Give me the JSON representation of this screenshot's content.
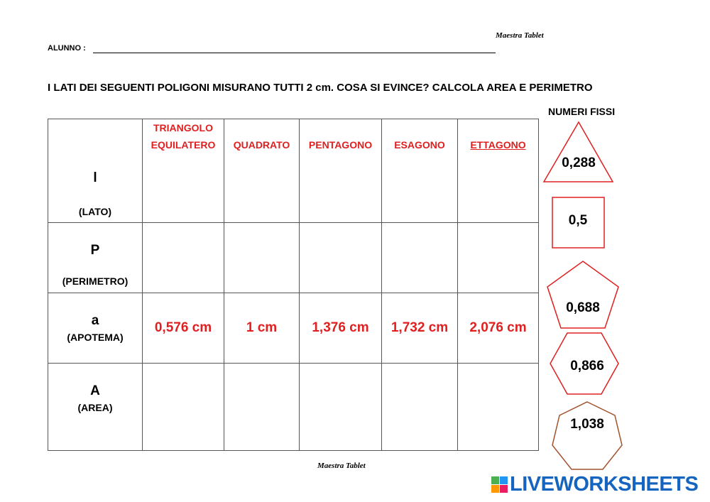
{
  "header": {
    "credit": "Maestra Tablet",
    "student_label": "ALUNNO :"
  },
  "instruction": "I LATI DEI SEGUENTI POLIGONI MISURANO TUTTI  2 cm. COSA SI EVINCE? CALCOLA AREA E PERIMETRO",
  "table": {
    "columns": [
      "TRIANGOLO EQUILATERO",
      "QUADRATO",
      "PENTAGONO",
      "ESAGONO",
      "ETTAGONO"
    ],
    "rows": [
      {
        "symbol": "l",
        "label": "(LATO)"
      },
      {
        "symbol": "P",
        "label": "(PERIMETRO)"
      },
      {
        "symbol": "a",
        "label": "(APOTEMA)",
        "cells": [
          "0,576 cm",
          "1  cm",
          "1,376 cm",
          "1,732 cm",
          "2,076 cm"
        ]
      },
      {
        "symbol": "A",
        "label": "(AREA)"
      }
    ]
  },
  "fixed_numbers": {
    "title": "NUMERI FISSI",
    "items": [
      "0,288",
      "0,5",
      "0,688",
      "0,866",
      "1,038"
    ]
  },
  "footer": {
    "credit": "Maestra Tablet",
    "logo": "LIVEWORKSHEETS"
  }
}
